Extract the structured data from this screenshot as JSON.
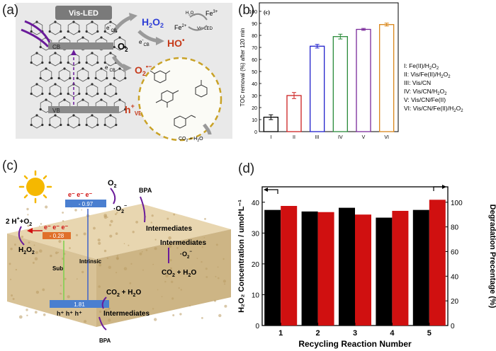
{
  "panels": {
    "a": {
      "label": "(a)",
      "led": "Vis-LED",
      "cb": "CB",
      "vb": "VB",
      "o2": "O",
      "o2_sub": "2",
      "ecb_1": "e",
      "ecb_1_sup": "-",
      "ecb_1_sub": "CB",
      "ecb_2": "e",
      "ecb_2_sup": "-",
      "ecb_2_sub": "CB",
      "ecb_3": "e",
      "ecb_3_sup": "-",
      "ecb_3_sub": "CB",
      "h2o2": "H",
      "h2o2_sub1": "2",
      "h2o2_o": "O",
      "h2o2_sub2": "2",
      "ho": "HO",
      "ho_sup": "•",
      "o2rad": "O",
      "o2rad_sub": "2",
      "o2rad_sup": "•−",
      "hvb": "h",
      "hvb_sup": "+",
      "hvb_sub": "VB",
      "fe3": "Fe",
      "fe3_sup": "3+",
      "fe2": "Fe",
      "fe2_sup": "2+",
      "h2o2_small": "H",
      "h2o2_small_sub": "2",
      "h2o2_small_o": "O",
      "h2o2_small_sub2": "2",
      "visled_small": "Vis-LED",
      "co2": "CO",
      "co2_sub": "2",
      "co2_rest": " + H",
      "co2_sub2": "2",
      "co2_o": "O"
    },
    "b": {
      "label": "(b)",
      "inner_label": "(c)",
      "legend": [
        {
          "roman": "I:",
          "pre": "Fe(II)/H",
          "sub": "2",
          "mid": "O",
          "sub2": "2"
        },
        {
          "roman": "II:",
          "pre": "Vis/Fe(II)/H",
          "sub": "2",
          "mid": "O",
          "sub2": "2"
        },
        {
          "roman": "III:",
          "pre": "Vis/CN",
          "sub": "",
          "mid": "",
          "sub2": ""
        },
        {
          "roman": "IV:",
          "pre": "Vis/CN/H",
          "sub": "2",
          "mid": "O",
          "sub2": "2"
        },
        {
          "roman": "V:",
          "pre": "Vis/CN/Fe(II)",
          "sub": "",
          "mid": "",
          "sub2": ""
        },
        {
          "roman": "VI:",
          "pre": "Vis/CN/Fe(II)/H",
          "sub": "2",
          "mid": "O",
          "sub2": "2"
        }
      ]
    },
    "c": {
      "label": "(c)",
      "o2": "O",
      "o2_sub": "2",
      "bpa_top": "BPA",
      "bpa_bottom": "BPA",
      "o2_rad": "·O",
      "o2_rad_sub": "2",
      "o2_rad_sup": "−",
      "o2_rad2": "·O",
      "o2_rad2_sub": "2",
      "o2_rad2_sup": "−",
      "intermediates_1": "Intermediates",
      "intermediates_2": "Intermediates",
      "intermediates_3": "Intermediates",
      "co2_1": "CO",
      "co2_1_sub": "2",
      "co2_1_rest": " + H",
      "co2_1_sub2": "2",
      "co2_1_o": "O",
      "co2_2": "CO",
      "co2_2_sub": "2",
      "co2_2_rest": " + H",
      "co2_2_sub2": "2",
      "co2_2_o": "O",
      "h_plus": "2 H",
      "h_plus_sup": "+",
      "h_plus_rest": "+O",
      "h_plus_sub": "2",
      "h2o2": "H",
      "h2o2_sub1": "2",
      "h2o2_o": "O",
      "h2o2_sub2": "2",
      "electrons_top": "e⁻ e⁻ e⁻",
      "electrons_mid": "e⁻ e⁻ e⁻",
      "holes": "h⁺ h⁺ h⁺",
      "cb_intrinsic": "- 0.97",
      "cb_sub": "- 0.28",
      "vb": "1.81",
      "sub_label": "Sub",
      "intrinsic_label": "Intrinsic"
    },
    "d": {
      "label": "(d)"
    }
  },
  "chart_data": [
    {
      "type": "bar",
      "panel": "b",
      "title": "",
      "categories": [
        "I",
        "II",
        "III",
        "IV",
        "V",
        "VI"
      ],
      "values": [
        12,
        30,
        71,
        79,
        85,
        89
      ],
      "errors": [
        2,
        2.5,
        1.5,
        2,
        0.8,
        1.2
      ],
      "colors": [
        "#000000",
        "#cc2020",
        "#2020cc",
        "#2a8a3a",
        "#7a2a9a",
        "#d9861a"
      ],
      "xlabel": "",
      "ylabel": "TOC removal (%) after 120 min",
      "ylim": [
        0,
        100
      ],
      "yticks": [
        0,
        10,
        20,
        30,
        40,
        50,
        60,
        70,
        80,
        90,
        100
      ],
      "ytick_labels": [
        "0",
        "10",
        "20",
        "30",
        "40",
        "50",
        "60",
        "70",
        "80",
        "90",
        "100"
      ]
    },
    {
      "type": "bar",
      "panel": "d",
      "title": "",
      "categories": [
        "1",
        "2",
        "3",
        "4",
        "5"
      ],
      "xlabel": "Recycling Reaction Number",
      "ylabel_left": "H₂O₂ Concentration / umol*L⁻¹",
      "ylabel_right": "Degradation Precentage (%)",
      "series": [
        {
          "name": "H2O2 Concentration",
          "axis": "left",
          "color": "#000000",
          "values": [
            37.5,
            37.0,
            38.2,
            35.0,
            37.5
          ]
        },
        {
          "name": "Degradation Precentage",
          "axis": "right",
          "color": "#d01010",
          "values": [
            97,
            92,
            90,
            93,
            102
          ]
        }
      ],
      "ylim_left": [
        0,
        45
      ],
      "yticks_left": [
        0,
        10,
        20,
        30,
        40
      ],
      "ytick_labels_left": [
        "0",
        "10",
        "20",
        "30",
        "40"
      ],
      "ylim_right": [
        0,
        112.5
      ],
      "yticks_right": [
        0,
        20,
        40,
        60,
        80,
        100
      ],
      "ytick_labels_right": [
        "0",
        "20",
        "40",
        "60",
        "80",
        "100"
      ]
    }
  ]
}
